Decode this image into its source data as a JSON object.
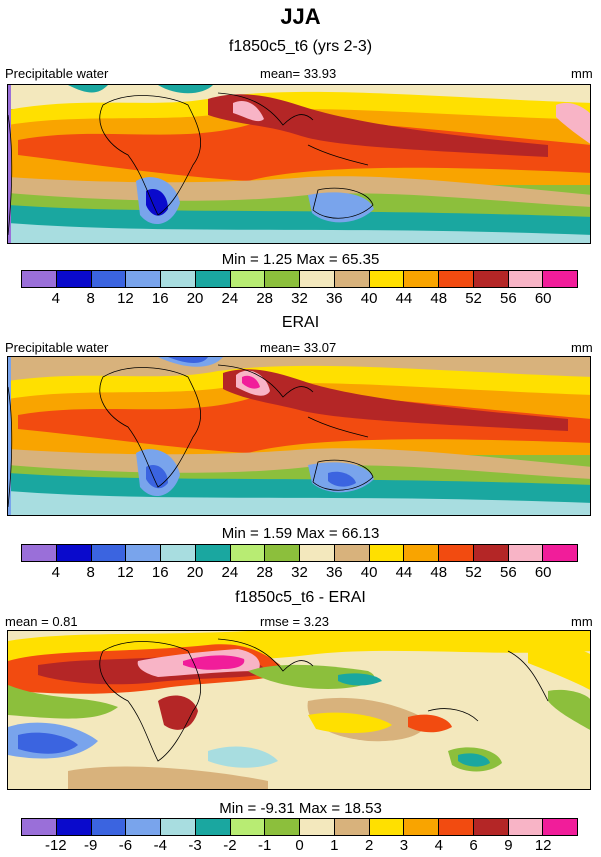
{
  "figure": {
    "title": "JJA"
  },
  "colors": [
    "#9a6fd9",
    "#0a0acc",
    "#3b64e0",
    "#79a4ec",
    "#a8dde0",
    "#1aa7a0",
    "#b8ec73",
    "#8cbf3c",
    "#f3e8bd",
    "#d8b27c",
    "#ffe000",
    "#f9a400",
    "#f24b10",
    "#b42626",
    "#f8b4c6",
    "#f11d9a"
  ],
  "panels": [
    {
      "title": "f1850c5_t6 (yrs 2-3)",
      "left_label": "Precipitable water",
      "center_label": "mean=  33.93",
      "right_label": "mm",
      "minmax": "Min =   1.25 Max =  65.35",
      "ticks": [
        "4",
        "8",
        "12",
        "16",
        "20",
        "24",
        "28",
        "32",
        "36",
        "40",
        "44",
        "48",
        "52",
        "56",
        "60"
      ]
    },
    {
      "title": "ERAI",
      "left_label": "Precipitable water",
      "center_label": "mean=  33.07",
      "right_label": "mm",
      "minmax": "Min =   1.59 Max =  66.13",
      "ticks": [
        "4",
        "8",
        "12",
        "16",
        "20",
        "24",
        "28",
        "32",
        "36",
        "40",
        "44",
        "48",
        "52",
        "56",
        "60"
      ]
    },
    {
      "title": "f1850c5_t6 - ERAI",
      "left_label": "mean =   0.81",
      "center_label": "rmse =   3.23",
      "right_label": "mm",
      "minmax": "Min =  -9.31 Max =  18.53",
      "ticks": [
        "-12",
        "-9",
        "-6",
        "-4",
        "-3",
        "-2",
        "-1",
        "0",
        "1",
        "2",
        "3",
        "4",
        "6",
        "9",
        "12"
      ]
    }
  ]
}
